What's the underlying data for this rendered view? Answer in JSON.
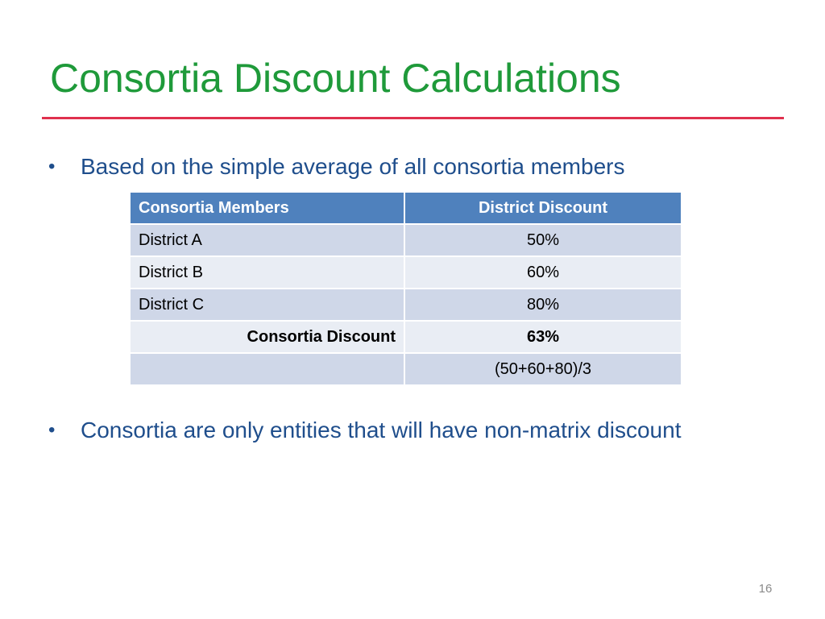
{
  "slide": {
    "title": "Consortia Discount Calculations",
    "page_number": "16",
    "colors": {
      "title": "#1f9a3a",
      "rule": "#e0304e",
      "bullet_text": "#1f4e8c",
      "table_header": "#4f81bd"
    }
  },
  "bullets": [
    {
      "marker": "•",
      "text": "Based on the simple average of all consortia members"
    },
    {
      "marker": "•",
      "text": "Consortia are only entities that will have non-matrix discount"
    }
  ],
  "table": {
    "headers": [
      "Consortia Members",
      "District Discount"
    ],
    "rows": [
      [
        "District A",
        "50%"
      ],
      [
        "District B",
        "60%"
      ],
      [
        "District C",
        "80%"
      ]
    ],
    "summary_label": "Consortia Discount",
    "summary_value": "63%",
    "formula_label": "",
    "formula": "(50+60+80)/3"
  }
}
